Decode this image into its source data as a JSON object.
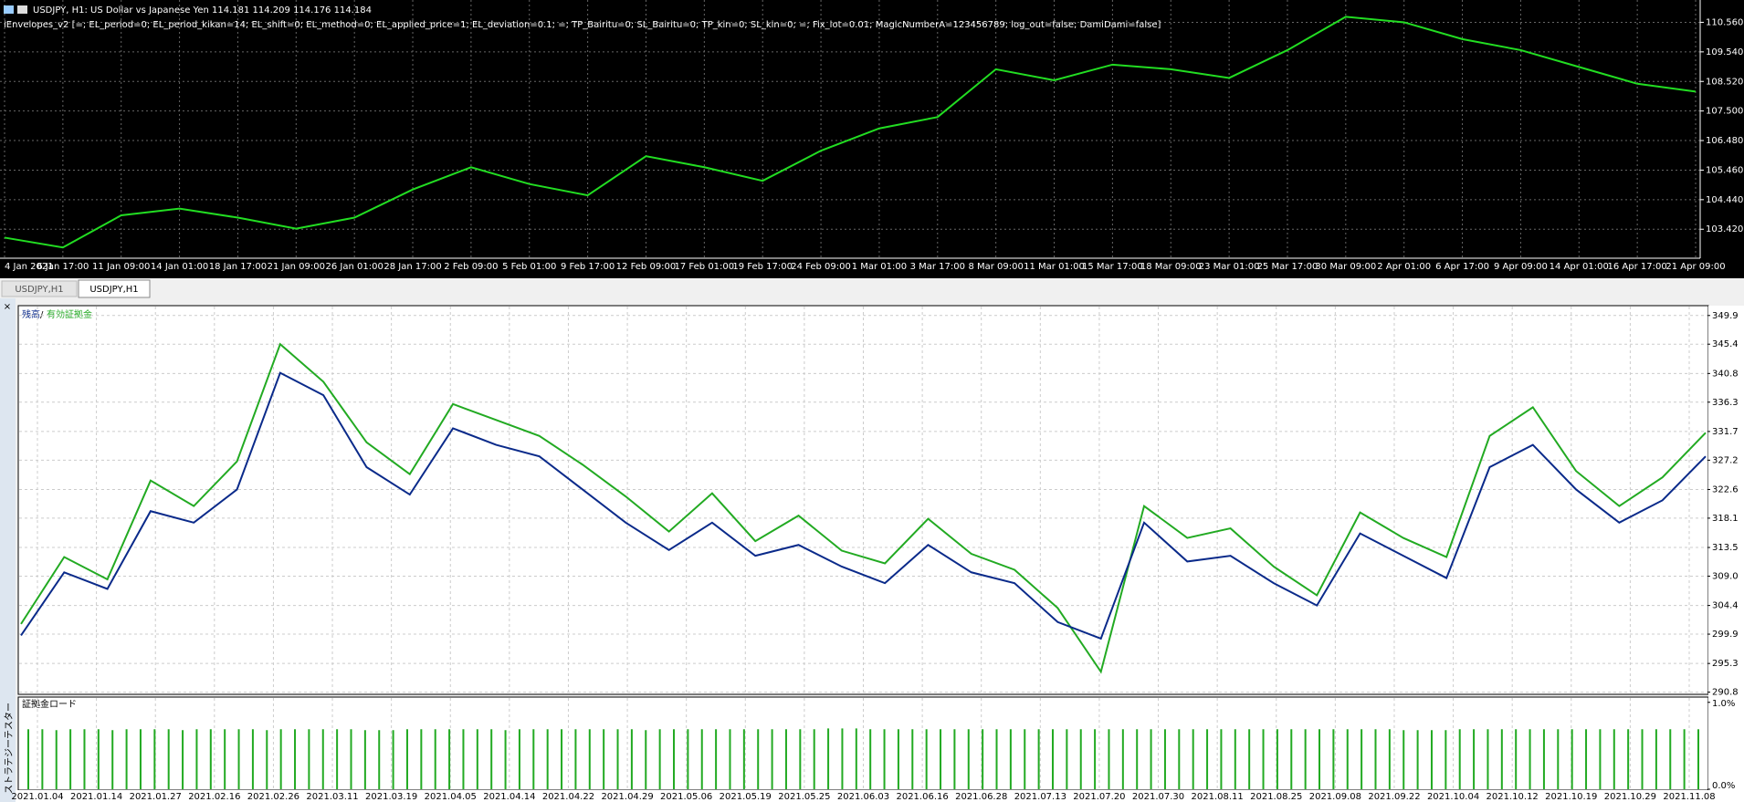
{
  "header": {
    "symbol_line": "USDJPY, H1:  US Dollar vs Japanese Yen  114.181 114.209 114.176 114.184",
    "indicator_line": "iEnvelopes_v2 [=; EL_period=0; EL_period_kikan=14; EL_shift=0; EL_method=0; EL_applied_price=1; EL_deviation=0.1; =; TP_Bairitu=0; SL_Bairitu=0; TP_kin=0; SL_kin=0; =; Fix_lot=0.01; MagicNumberA=123456789; log_out=false; DamiDami=false]"
  },
  "price_chart": {
    "type": "line",
    "color": "#22dd22",
    "ylim": [
      102.42,
      111.33
    ],
    "yticks": [
      {
        "value": 110.56,
        "label": "110.560"
      },
      {
        "value": 109.54,
        "label": "109.540"
      },
      {
        "value": 108.52,
        "label": "108.520"
      },
      {
        "value": 107.5,
        "label": "107.500"
      },
      {
        "value": 106.48,
        "label": "106.480"
      },
      {
        "value": 105.46,
        "label": "105.460"
      },
      {
        "value": 104.44,
        "label": "104.440"
      },
      {
        "value": 103.42,
        "label": "103.420"
      }
    ],
    "categories": [
      "4 Jan 2021",
      "6 Jan 17:00",
      "11 Jan 09:00",
      "14 Jan 01:00",
      "18 Jan 17:00",
      "21 Jan 09:00",
      "26 Jan 01:00",
      "28 Jan 17:00",
      "2 Feb 09:00",
      "5 Feb 01:00",
      "9 Feb 17:00",
      "12 Feb 09:00",
      "17 Feb 01:00",
      "19 Feb 17:00",
      "24 Feb 09:00",
      "1 Mar 01:00",
      "3 Mar 17:00",
      "8 Mar 09:00",
      "11 Mar 01:00",
      "15 Mar 17:00",
      "18 Mar 09:00",
      "23 Mar 01:00",
      "25 Mar 17:00",
      "30 Mar 09:00",
      "2 Apr 01:00",
      "6 Apr 17:00",
      "9 Apr 09:00",
      "14 Apr 01:00",
      "16 Apr 17:00",
      "21 Apr 09:00"
    ],
    "values": [
      103.13,
      102.79,
      103.9,
      104.13,
      103.82,
      103.44,
      103.82,
      104.79,
      105.56,
      104.98,
      104.59,
      105.94,
      105.56,
      105.09,
      106.13,
      106.9,
      107.29,
      108.94,
      108.56,
      109.1,
      108.94,
      108.64,
      109.6,
      110.75,
      110.56,
      109.98,
      109.6,
      109.02,
      108.44,
      108.17
    ],
    "grid": true
  },
  "tabs": [
    "USDJPY,H1",
    "USDJPY,H1"
  ],
  "side_label": "ストラテジーテスター",
  "balance_chart": {
    "type": "line",
    "legend_separator": "/",
    "ylim": [
      290.6,
      351.3
    ],
    "yticks": [
      349.9,
      345.4,
      340.8,
      336.3,
      331.7,
      327.2,
      322.6,
      318.1,
      313.5,
      {
        "value": 309,
        "label": "309.0"
      },
      304.4,
      299.9,
      295.3,
      290.8
    ],
    "series": [
      {
        "name": "残高",
        "color": "#0a2a8a",
        "values": [
          299.7,
          309.6,
          307.0,
          319.2,
          317.4,
          322.6,
          340.9,
          337.4,
          326.1,
          321.8,
          332.2,
          329.6,
          327.8,
          322.6,
          317.4,
          313.1,
          317.4,
          312.2,
          313.9,
          310.5,
          307.9,
          313.9,
          309.6,
          307.9,
          301.8,
          299.2,
          317.4,
          311.3,
          312.2,
          307.9,
          304.4,
          315.7,
          312.2,
          308.7,
          326.1,
          329.6,
          322.6,
          317.4,
          320.9,
          327.8
        ]
      },
      {
        "name": "有効証拠金",
        "color": "#22aa22",
        "values": [
          301.5,
          312.0,
          308.5,
          324.0,
          320.0,
          327.0,
          345.4,
          339.5,
          330.0,
          325.0,
          336.0,
          333.5,
          331.0,
          326.5,
          321.5,
          316.0,
          322.0,
          314.5,
          318.5,
          313.0,
          311.0,
          318.0,
          312.5,
          310.0,
          304.0,
          294.0,
          320.0,
          315.0,
          316.5,
          310.5,
          306.0,
          319.0,
          315.0,
          312.0,
          331.0,
          335.5,
          325.5,
          320.0,
          324.5,
          331.5
        ]
      }
    ],
    "grid": true
  },
  "margin_chart": {
    "type": "bar",
    "title": "証拠金ロード",
    "color": "#22aa22",
    "ylim": [
      0,
      1.05
    ],
    "yticks": [
      {
        "value": 1,
        "label": "1.0%"
      },
      {
        "value": 0,
        "label": "0.0%"
      }
    ],
    "values": [
      0.69,
      0.69,
      0.68,
      0.69,
      0.69,
      0.69,
      0.68,
      0.69,
      0.69,
      0.69,
      0.69,
      0.68,
      0.69,
      0.69,
      0.69,
      0.69,
      0.69,
      0.68,
      0.69,
      0.69,
      0.69,
      0.69,
      0.69,
      0.69,
      0.68,
      0.68,
      0.68,
      0.69,
      0.69,
      0.69,
      0.69,
      0.69,
      0.69,
      0.69,
      0.68,
      0.69,
      0.69,
      0.69,
      0.69,
      0.69,
      0.69,
      0.69,
      0.69,
      0.69,
      0.68,
      0.69,
      0.69,
      0.69,
      0.69,
      0.69,
      0.69,
      0.69,
      0.69,
      0.69,
      0.69,
      0.69,
      0.69,
      0.7,
      0.7,
      0.7,
      0.69,
      0.69,
      0.69,
      0.69,
      0.69,
      0.69,
      0.69,
      0.69,
      0.69,
      0.69,
      0.69,
      0.69,
      0.69,
      0.69,
      0.69,
      0.69,
      0.69,
      0.69,
      0.69,
      0.69,
      0.69,
      0.69,
      0.69,
      0.69,
      0.69,
      0.69,
      0.69,
      0.69,
      0.69,
      0.69,
      0.69,
      0.69,
      0.69,
      0.69,
      0.69,
      0.69,
      0.69,
      0.69,
      0.68,
      0.68,
      0.68,
      0.68,
      0.69,
      0.69,
      0.69,
      0.69,
      0.69,
      0.69,
      0.69,
      0.69,
      0.69,
      0.69,
      0.69,
      0.69,
      0.69,
      0.69,
      0.69,
      0.69,
      0.69,
      0.69
    ],
    "categories": [
      "2021.01.04",
      "2021.01.14",
      "2021.01.27",
      "2021.02.16",
      "2021.02.26",
      "2021.03.11",
      "2021.03.19",
      "2021.04.05",
      "2021.04.14",
      "2021.04.22",
      "2021.04.29",
      "2021.05.06",
      "2021.05.19",
      "2021.05.25",
      "2021.06.03",
      "2021.06.16",
      "2021.06.28",
      "2021.07.13",
      "2021.07.20",
      "2021.07.30",
      "2021.08.11",
      "2021.08.25",
      "2021.09.08",
      "2021.09.22",
      "2021.10.04",
      "2021.10.12",
      "2021.10.19",
      "2021.10.29",
      "2021.11.08"
    ]
  }
}
